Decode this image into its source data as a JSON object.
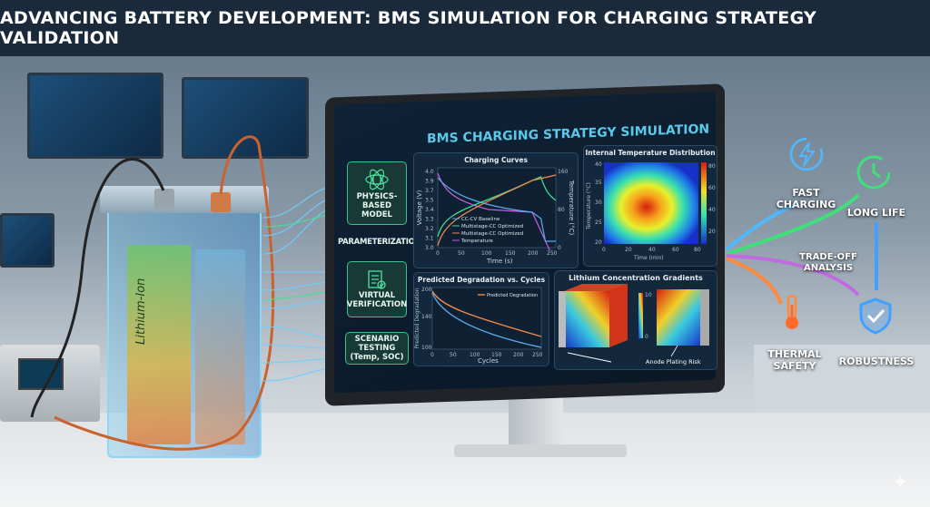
{
  "title": "ADVANCING BATTERY DEVELOPMENT: BMS SIMULATION FOR CHARGING STRATEGY VALIDATION",
  "battery": {
    "label": "Lithium-Ion"
  },
  "screen": {
    "title": "BMS CHARGING STRATEGY SIMULATION",
    "workflow": [
      {
        "label": "PHYSICS-BASED MODEL",
        "icon": "atom-battery-icon"
      },
      {
        "label": "PARAMETERIZATION"
      },
      {
        "label": "VIRTUAL VERIFICATION",
        "icon": "checklist-icon"
      },
      {
        "label": "SCENARIO TESTING (Temp, SOC)"
      }
    ],
    "charging_curves": {
      "title": "Charging Curves",
      "xlabel": "Time (s)",
      "ylabel": "Voltage (V)",
      "y2label": "Temperature (°C)",
      "xticks": [
        "0",
        "50",
        "100",
        "150",
        "200",
        "250"
      ],
      "yticks": [
        "3.0",
        "3.1",
        "3.2",
        "3.3",
        "3.4",
        "3.5",
        "3.7",
        "3.9",
        "4.0"
      ],
      "y2ticks": [
        "0",
        "20",
        "40",
        "60",
        "80",
        "100",
        "120",
        "140",
        "160"
      ],
      "legend": [
        "CC-CV Baseline",
        "Multistage-CC Optimized",
        "Multistage-CC Optimized",
        "Temperature"
      ],
      "colors": [
        "#5aa9e6",
        "#3ddc97",
        "#f08a4b",
        "#c85ee0"
      ]
    },
    "temperature_map": {
      "title": "Internal Temperature Distribution",
      "xlabel": "Time (min)",
      "ylabel": "Temperature (°C)",
      "xticks": [
        "0",
        "20",
        "40",
        "60",
        "80"
      ],
      "yticks": [
        "20",
        "25",
        "30",
        "35",
        "40"
      ],
      "colorbar_ticks": [
        "80",
        "60",
        "40",
        "20"
      ]
    },
    "degradation": {
      "title": "Predicted Degradation vs. Cycles",
      "xlabel": "Cycles",
      "ylabel": "Predicted Degradation",
      "legend": "Predicted Degradation",
      "xticks": [
        "0",
        "50",
        "100",
        "150",
        "200",
        "250"
      ],
      "yticks": [
        "100",
        "100",
        "100",
        "140",
        "160",
        "160",
        "180",
        "200"
      ]
    },
    "lithium": {
      "title": "Lithium Concentration Gradients",
      "colorbar_ticks": [
        "10",
        "0"
      ],
      "annotation": "Anode Plating Risk"
    }
  },
  "outcomes": {
    "fast_charging": {
      "label": "FAST CHARGING",
      "icon": "lightning-icon",
      "color": "#4fb8ff"
    },
    "long_life": {
      "label": "LONG LIFE",
      "icon": "clock-icon",
      "color": "#3ee07a"
    },
    "tradeoff": {
      "label": "TRADE-OFF ANALYSIS"
    },
    "thermal_safety": {
      "label": "THERMAL SAFETY",
      "icon": "thermometer-icon",
      "color": "#ff8a3d"
    },
    "robustness": {
      "label": "ROBUSTNESS",
      "icon": "shield-check-icon",
      "color": "#3fa0ff"
    }
  }
}
